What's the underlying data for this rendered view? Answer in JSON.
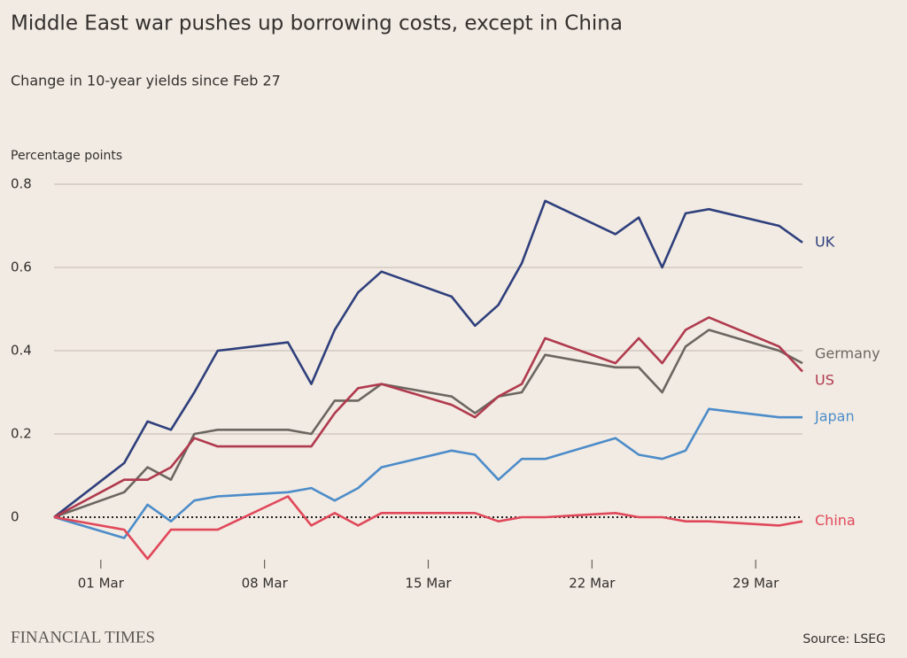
{
  "chart_data": {
    "type": "line",
    "title": "Middle East war pushes up borrowing costs, except in China",
    "subtitle": "Change in 10-year yields since Feb 27",
    "y_label": "Percentage points",
    "brand": "FINANCIAL TIMES",
    "source": "Source: LSEG",
    "x": [
      "27 Feb",
      "02 Mar",
      "03 Mar",
      "04 Mar",
      "05 Mar",
      "06 Mar",
      "09 Mar",
      "10 Mar",
      "11 Mar",
      "12 Mar",
      "13 Mar",
      "16 Mar",
      "17 Mar",
      "18 Mar",
      "19 Mar",
      "20 Mar",
      "23 Mar",
      "24 Mar",
      "25 Mar",
      "26 Mar",
      "27 Mar",
      "30 Mar",
      "31 Mar"
    ],
    "xlim": [
      "27 Feb",
      "31 Mar"
    ],
    "xticks": [
      "01 Mar",
      "08 Mar",
      "15 Mar",
      "22 Mar",
      "29 Mar"
    ],
    "ylim": [
      -0.1,
      0.8
    ],
    "yticks": [
      0,
      0.2,
      0.4,
      0.6,
      0.8
    ],
    "grid": true,
    "series": [
      {
        "name": "UK",
        "color": "#2e3f7c",
        "values": [
          0,
          0.13,
          0.23,
          0.21,
          0.3,
          0.4,
          0.42,
          0.32,
          0.45,
          0.54,
          0.59,
          0.53,
          0.46,
          0.51,
          0.61,
          0.76,
          0.68,
          0.72,
          0.6,
          0.73,
          0.74,
          0.7,
          0.66
        ]
      },
      {
        "name": "Germany",
        "color": "#6b6760",
        "values": [
          0,
          0.06,
          0.12,
          0.09,
          0.2,
          0.21,
          0.21,
          0.2,
          0.28,
          0.28,
          0.32,
          0.29,
          0.25,
          0.29,
          0.3,
          0.39,
          0.36,
          0.36,
          0.3,
          0.41,
          0.45,
          0.4,
          0.37
        ]
      },
      {
        "name": "US",
        "color": "#b03a4e",
        "values": [
          0,
          0.09,
          0.09,
          0.12,
          0.19,
          0.17,
          0.17,
          0.17,
          0.25,
          0.31,
          0.32,
          0.27,
          0.24,
          0.29,
          0.32,
          0.43,
          0.37,
          0.43,
          0.37,
          0.45,
          0.48,
          0.41,
          0.35
        ]
      },
      {
        "name": "Japan",
        "color": "#4c8cc9",
        "values": [
          0,
          -0.05,
          0.03,
          -0.01,
          0.04,
          0.05,
          0.06,
          0.07,
          0.04,
          0.07,
          0.12,
          0.16,
          0.15,
          0.09,
          0.14,
          0.14,
          0.19,
          0.15,
          0.14,
          0.16,
          0.26,
          0.24,
          0.24
        ]
      },
      {
        "name": "China",
        "color": "#e0485a",
        "values": [
          0,
          -0.03,
          -0.1,
          -0.03,
          -0.03,
          -0.03,
          0.05,
          -0.02,
          0.01,
          -0.02,
          0.01,
          0.01,
          0.01,
          -0.01,
          0,
          0,
          0.01,
          0,
          0,
          -0.01,
          -0.01,
          -0.02,
          -0.01
        ]
      }
    ]
  }
}
